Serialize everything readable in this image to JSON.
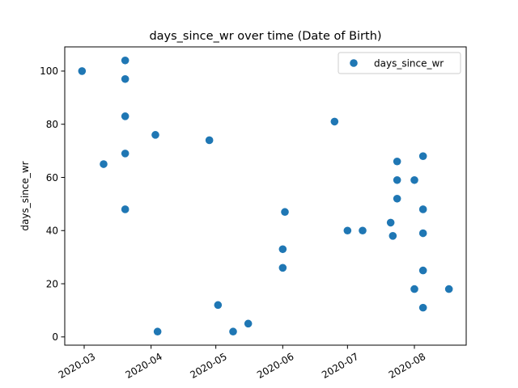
{
  "chart_data": {
    "type": "scatter",
    "title": "days_since_wr over time (Date of Birth)",
    "xlabel": "",
    "ylabel": "days_since_wr",
    "x_axis_type": "date",
    "xlim": [
      "2020-02-21",
      "2020-08-25"
    ],
    "ylim": [
      -3.1,
      109.1
    ],
    "xticks": [
      {
        "date": "2020-03-01",
        "label": "2020-03"
      },
      {
        "date": "2020-04-01",
        "label": "2020-04"
      },
      {
        "date": "2020-05-01",
        "label": "2020-05"
      },
      {
        "date": "2020-06-01",
        "label": "2020-06"
      },
      {
        "date": "2020-07-01",
        "label": "2020-07"
      },
      {
        "date": "2020-08-01",
        "label": "2020-08"
      }
    ],
    "xtick_rotation": 30,
    "yticks": [
      0,
      20,
      40,
      60,
      80,
      100
    ],
    "grid": false,
    "legend": {
      "position": "top-right"
    },
    "series": [
      {
        "name": "days_since_wr",
        "color": "#1f77b4",
        "marker": "circle",
        "points": [
          {
            "x": "2020-02-29",
            "y": 100
          },
          {
            "x": "2020-03-10",
            "y": 65
          },
          {
            "x": "2020-03-20",
            "y": 104
          },
          {
            "x": "2020-03-20",
            "y": 97
          },
          {
            "x": "2020-03-20",
            "y": 83
          },
          {
            "x": "2020-03-20",
            "y": 69
          },
          {
            "x": "2020-03-20",
            "y": 48
          },
          {
            "x": "2020-04-03",
            "y": 76
          },
          {
            "x": "2020-04-04",
            "y": 2
          },
          {
            "x": "2020-04-28",
            "y": 74
          },
          {
            "x": "2020-05-02",
            "y": 12
          },
          {
            "x": "2020-05-09",
            "y": 2
          },
          {
            "x": "2020-05-16",
            "y": 5
          },
          {
            "x": "2020-06-01",
            "y": 33
          },
          {
            "x": "2020-06-01",
            "y": 26
          },
          {
            "x": "2020-06-02",
            "y": 47
          },
          {
            "x": "2020-06-25",
            "y": 81
          },
          {
            "x": "2020-07-01",
            "y": 40
          },
          {
            "x": "2020-07-08",
            "y": 40
          },
          {
            "x": "2020-07-21",
            "y": 43
          },
          {
            "x": "2020-07-22",
            "y": 38
          },
          {
            "x": "2020-07-24",
            "y": 66
          },
          {
            "x": "2020-07-24",
            "y": 59
          },
          {
            "x": "2020-07-24",
            "y": 52
          },
          {
            "x": "2020-08-01",
            "y": 59
          },
          {
            "x": "2020-08-01",
            "y": 18
          },
          {
            "x": "2020-08-05",
            "y": 68
          },
          {
            "x": "2020-08-05",
            "y": 48
          },
          {
            "x": "2020-08-05",
            "y": 39
          },
          {
            "x": "2020-08-05",
            "y": 25
          },
          {
            "x": "2020-08-05",
            "y": 11
          },
          {
            "x": "2020-08-17",
            "y": 18
          }
        ]
      }
    ]
  }
}
